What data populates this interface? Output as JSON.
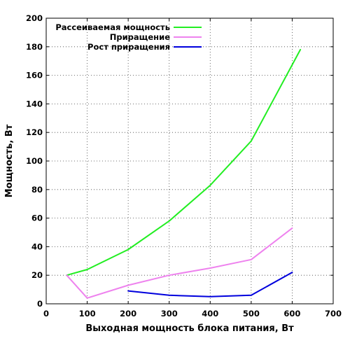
{
  "chart_data": {
    "type": "line",
    "xlabel": "Выходная мощность блока питания, Вт",
    "ylabel": "Мощность, Вт",
    "xlim": [
      0,
      700
    ],
    "ylim": [
      0,
      200
    ],
    "xticks": [
      "0",
      "100",
      "200",
      "300",
      "400",
      "500",
      "600",
      "700"
    ],
    "yticks": [
      "0",
      "20",
      "40",
      "60",
      "80",
      "100",
      "120",
      "140",
      "160",
      "180",
      "200"
    ],
    "grid": true,
    "legend_position": "top-left",
    "series": [
      {
        "name": "Рассеиваемая мощность",
        "color": "#22ee22",
        "x": [
          50,
          100,
          200,
          300,
          400,
          500,
          620
        ],
        "y": [
          20,
          24,
          38,
          58,
          83,
          114,
          178
        ]
      },
      {
        "name": "Приращение",
        "color": "#ee82ee",
        "x": [
          50,
          100,
          200,
          300,
          400,
          500,
          600
        ],
        "y": [
          20,
          4,
          13,
          20,
          25,
          31,
          53
        ]
      },
      {
        "name": "Рост приращения",
        "color": "#0000dd",
        "x": [
          200,
          300,
          400,
          500,
          600
        ],
        "y": [
          9,
          6,
          5,
          6,
          22
        ]
      }
    ]
  }
}
